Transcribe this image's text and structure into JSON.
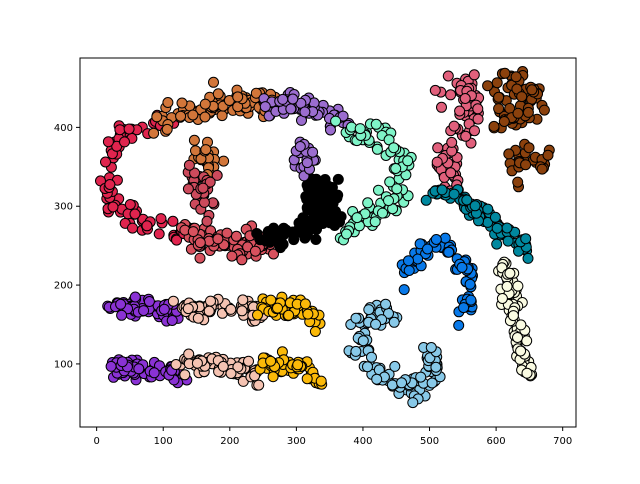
{
  "chart_data": {
    "type": "scatter",
    "title": "",
    "xlabel": "",
    "ylabel": "",
    "xlim": [
      -25,
      720
    ],
    "ylim": [
      20,
      488
    ],
    "xticks": [
      0,
      100,
      200,
      300,
      400,
      500,
      600,
      700
    ],
    "yticks": [
      100,
      200,
      300,
      400
    ],
    "grid": false,
    "marker": "circle",
    "marker_edge_color": "#000000",
    "clusters": [
      {
        "color": "#e0244e",
        "shape": "arc",
        "points_approx": 80,
        "center": [
          60,
          330
        ],
        "path": [
          [
            100,
            410
          ],
          [
            40,
            395
          ],
          [
            12,
            345
          ],
          [
            30,
            300
          ],
          [
            80,
            275
          ],
          [
            135,
            262
          ]
        ]
      },
      {
        "color": "#d2763a",
        "shape": "arc",
        "points_approx": 90,
        "center": [
          180,
          425
        ],
        "path": [
          [
            95,
            412
          ],
          [
            160,
            425
          ],
          [
            230,
            432
          ],
          [
            270,
            430
          ]
        ]
      },
      {
        "color": "#9b6dcf",
        "shape": "arc",
        "points_approx": 60,
        "center": [
          320,
          415
        ],
        "path": [
          [
            255,
            422
          ],
          [
            300,
            428
          ],
          [
            340,
            418
          ],
          [
            375,
            405
          ]
        ]
      },
      {
        "color": "#7ff4c8",
        "shape": "arc",
        "points_approx": 85,
        "center": [
          420,
          340
        ],
        "path": [
          [
            370,
            400
          ],
          [
            425,
            395
          ],
          [
            460,
            355
          ],
          [
            450,
            310
          ],
          [
            410,
            285
          ],
          [
            370,
            270
          ]
        ]
      },
      {
        "color": "#d8515e",
        "shape": "arc",
        "points_approx": 90,
        "center": [
          200,
          255
        ],
        "path": [
          [
            130,
            270
          ],
          [
            170,
            255
          ],
          [
            210,
            250
          ],
          [
            260,
            252
          ]
        ]
      },
      {
        "color": "#000000",
        "shape": "blob",
        "points_approx": 110,
        "center": [
          300,
          275
        ],
        "path": [
          [
            255,
            255
          ],
          [
            290,
            265
          ],
          [
            330,
            285
          ],
          [
            350,
            290
          ],
          [
            345,
            320
          ],
          [
            320,
            325
          ]
        ]
      },
      {
        "color": "#d2763a",
        "shape": "blob",
        "points_approx": 25,
        "center": [
          165,
          365
        ],
        "path": [
          [
            150,
            375
          ],
          [
            170,
            370
          ],
          [
            180,
            355
          ],
          [
            160,
            355
          ]
        ]
      },
      {
        "color": "#cc4a5c",
        "shape": "blob",
        "points_approx": 30,
        "center": [
          150,
          320
        ],
        "path": [
          [
            130,
            335
          ],
          [
            165,
            330
          ],
          [
            170,
            320
          ],
          [
            150,
            305
          ]
        ]
      },
      {
        "color": "#9b6dcf",
        "shape": "blob",
        "points_approx": 20,
        "center": [
          310,
          360
        ],
        "path": [
          [
            300,
            370
          ],
          [
            315,
            375
          ],
          [
            325,
            360
          ],
          [
            305,
            350
          ]
        ]
      },
      {
        "color": "#e1607c",
        "shape": "blob",
        "points_approx": 90,
        "center": [
          540,
          370
        ],
        "path": [
          [
            520,
            440
          ],
          [
            560,
            455
          ],
          [
            560,
            410
          ],
          [
            540,
            380
          ],
          [
            520,
            360
          ],
          [
            530,
            320
          ]
        ]
      },
      {
        "color": "#8b410d",
        "shape": "blob",
        "points_approx": 70,
        "center": [
          625,
          430
        ],
        "path": [
          [
            590,
            445
          ],
          [
            620,
            455
          ],
          [
            660,
            440
          ],
          [
            650,
            415
          ],
          [
            610,
            410
          ]
        ]
      },
      {
        "color": "#8b410d",
        "shape": "blob",
        "points_approx": 30,
        "center": [
          645,
          345
        ],
        "path": [
          [
            620,
            355
          ],
          [
            645,
            365
          ],
          [
            670,
            355
          ],
          [
            655,
            335
          ],
          [
            630,
            330
          ]
        ]
      },
      {
        "color": "#00889f",
        "shape": "band",
        "points_approx": 80,
        "center": [
          545,
          290
        ],
        "path": [
          [
            505,
            320
          ],
          [
            540,
            310
          ],
          [
            570,
            295
          ],
          [
            600,
            275
          ],
          [
            630,
            255
          ],
          [
            655,
            245
          ]
        ]
      },
      {
        "color": "#0879e9",
        "shape": "band",
        "points_approx": 70,
        "center": [
          500,
          225
        ],
        "path": [
          [
            465,
            215
          ],
          [
            490,
            240
          ],
          [
            520,
            250
          ],
          [
            545,
            235
          ],
          [
            560,
            210
          ],
          [
            555,
            180
          ],
          [
            550,
            160
          ]
        ]
      },
      {
        "color": "#88c9e8",
        "shape": "s_curve",
        "points_approx": 110,
        "center": [
          460,
          110
        ],
        "path": [
          [
            450,
            160
          ],
          [
            420,
            170
          ],
          [
            395,
            150
          ],
          [
            400,
            110
          ],
          [
            430,
            80
          ],
          [
            475,
            70
          ],
          [
            505,
            85
          ],
          [
            500,
            115
          ]
        ]
      },
      {
        "color": "#fafbe2",
        "shape": "band",
        "points_approx": 80,
        "center": [
          640,
          150
        ],
        "path": [
          [
            610,
            225
          ],
          [
            625,
            185
          ],
          [
            630,
            145
          ],
          [
            640,
            110
          ],
          [
            650,
            80
          ]
        ]
      },
      {
        "color": "#8a32d4",
        "shape": "band",
        "points_approx": 70,
        "center": [
          65,
          165
        ],
        "path": [
          [
            20,
            175
          ],
          [
            60,
            170
          ],
          [
            110,
            168
          ],
          [
            125,
            160
          ]
        ]
      },
      {
        "color": "#f5c3b2",
        "shape": "band",
        "points_approx": 70,
        "center": [
          190,
          165
        ],
        "path": [
          [
            130,
            170
          ],
          [
            180,
            170
          ],
          [
            225,
            170
          ],
          [
            245,
            160
          ]
        ]
      },
      {
        "color": "#fbb908",
        "shape": "band",
        "points_approx": 60,
        "center": [
          290,
          165
        ],
        "path": [
          [
            245,
            170
          ],
          [
            280,
            170
          ],
          [
            320,
            168
          ],
          [
            330,
            155
          ]
        ]
      },
      {
        "color": "#8a32d4",
        "shape": "band",
        "points_approx": 70,
        "center": [
          65,
          90
        ],
        "path": [
          [
            20,
            100
          ],
          [
            60,
            95
          ],
          [
            110,
            90
          ],
          [
            130,
            80
          ]
        ]
      },
      {
        "color": "#f5c3b2",
        "shape": "band",
        "points_approx": 70,
        "center": [
          190,
          90
        ],
        "path": [
          [
            130,
            100
          ],
          [
            180,
            100
          ],
          [
            225,
            95
          ],
          [
            245,
            80
          ]
        ]
      },
      {
        "color": "#fbb908",
        "shape": "band",
        "points_approx": 60,
        "center": [
          290,
          90
        ],
        "path": [
          [
            245,
            100
          ],
          [
            285,
            100
          ],
          [
            320,
            95
          ],
          [
            330,
            80
          ]
        ]
      }
    ]
  }
}
